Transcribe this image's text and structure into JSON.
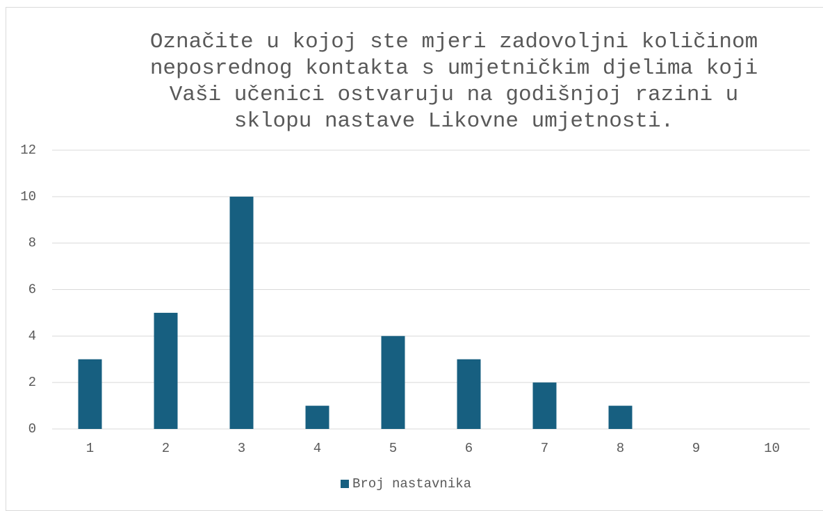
{
  "chart_data": {
    "type": "bar",
    "title": "Označite u kojoj ste mjeri zadovoljni količinom neposrednog kontakta s umjetničkim djelima koji Vaši učenici ostvaruju na godišnjoj razini u sklopu nastave Likovne umjetnosti.",
    "categories": [
      "1",
      "2",
      "3",
      "4",
      "5",
      "6",
      "7",
      "8",
      "9",
      "10"
    ],
    "series": [
      {
        "name": "Broj nastavnika",
        "color": "#175f80",
        "values": [
          3,
          5,
          10,
          1,
          4,
          3,
          2,
          1,
          0,
          0
        ]
      }
    ],
    "ylim": [
      0,
      12
    ],
    "yticks": [
      0,
      2,
      4,
      6,
      8,
      10,
      12
    ],
    "grid": true,
    "legend": "bottom"
  }
}
